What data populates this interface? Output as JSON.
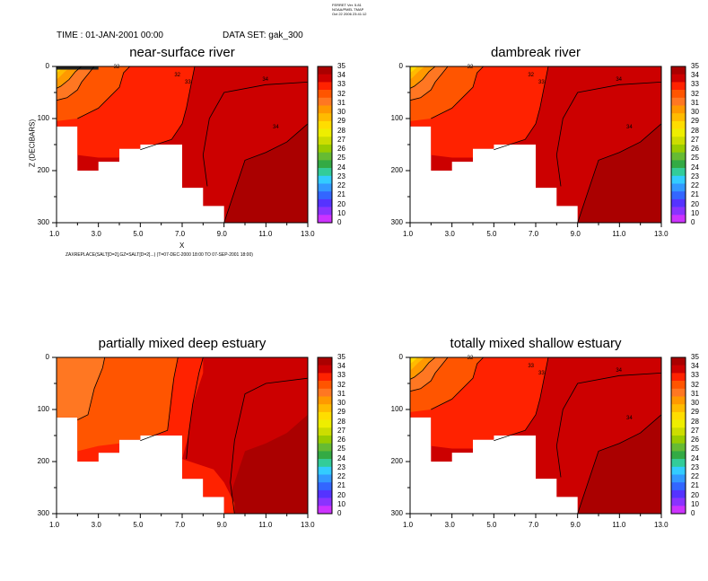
{
  "header": {
    "version_lines": [
      "FERRET Ver. 5.81",
      "NOAA/PMEL TMAP",
      "Oct 22 2006 23:41:12"
    ],
    "time_label": "TIME : 01-JAN-2001 00:00",
    "dataset_label": "DATA SET: gak_300",
    "formula": "ZAXREPLACE(SALT[D=2],GZ=SALT[D=2]...) (T=07-DEC-2000 18:00 TO 07-SEP-2001 18:00)"
  },
  "colors": {
    "levels": [
      "#cc33ff",
      "#8a33ff",
      "#5533ff",
      "#3366ff",
      "#3399ff",
      "#33ccff",
      "#33cc99",
      "#33aa44",
      "#66bb33",
      "#99cc00",
      "#ccdd00",
      "#eeee00",
      "#ffdd00",
      "#ffbb00",
      "#ff9900",
      "#ff7722",
      "#ff5500",
      "#ff2200",
      "#cc0000",
      "#aa0000"
    ]
  },
  "colorbar": {
    "labels": [
      "35",
      "34",
      "33",
      "32",
      "31",
      "30",
      "29",
      "28",
      "27",
      "26",
      "25",
      "24",
      "23",
      "22",
      "21",
      "20",
      "10",
      "0"
    ]
  },
  "chart_data": [
    {
      "type": "heatmap",
      "title": "near-surface river",
      "ylabel": "Z (DECIBARS)",
      "xlabel": "X",
      "x_ticks": [
        "1.0",
        "3.0",
        "5.0",
        "7.0",
        "9.0",
        "11.0",
        "13.0"
      ],
      "y_ticks": [
        "0",
        "100",
        "200",
        "300"
      ],
      "xlim": [
        1,
        13
      ],
      "ylim": [
        300,
        0
      ],
      "contour_labels": [
        "32",
        "32",
        "33",
        "34",
        "34"
      ],
      "show_ylabel": true,
      "show_xlabel": true,
      "show_formula": true
    },
    {
      "type": "heatmap",
      "title": "dambreak river",
      "x_ticks": [
        "1.0",
        "3.0",
        "5.0",
        "7.0",
        "9.0",
        "11.0",
        "13.0"
      ],
      "y_ticks": [
        "0",
        "100",
        "200",
        "300"
      ],
      "xlim": [
        1,
        13
      ],
      "ylim": [
        300,
        0
      ],
      "contour_labels": [
        "32",
        "32",
        "33",
        "34",
        "34"
      ]
    },
    {
      "type": "heatmap",
      "title": "partially mixed deep estuary",
      "x_ticks": [
        "1.0",
        "3.0",
        "5.0",
        "7.0",
        "9.0",
        "11.0",
        "13.0"
      ],
      "y_ticks": [
        "0",
        "100",
        "200",
        "300"
      ],
      "xlim": [
        1,
        13
      ],
      "ylim": [
        300,
        0
      ],
      "contour_labels": []
    },
    {
      "type": "heatmap",
      "title": "totally mixed shallow estuary",
      "x_ticks": [
        "1.0",
        "3.0",
        "5.0",
        "7.0",
        "9.0",
        "11.0",
        "13.0"
      ],
      "y_ticks": [
        "0",
        "100",
        "200",
        "300"
      ],
      "xlim": [
        1,
        13
      ],
      "ylim": [
        300,
        0
      ],
      "contour_labels": [
        "32",
        "33",
        "33",
        "34",
        "34"
      ]
    }
  ]
}
